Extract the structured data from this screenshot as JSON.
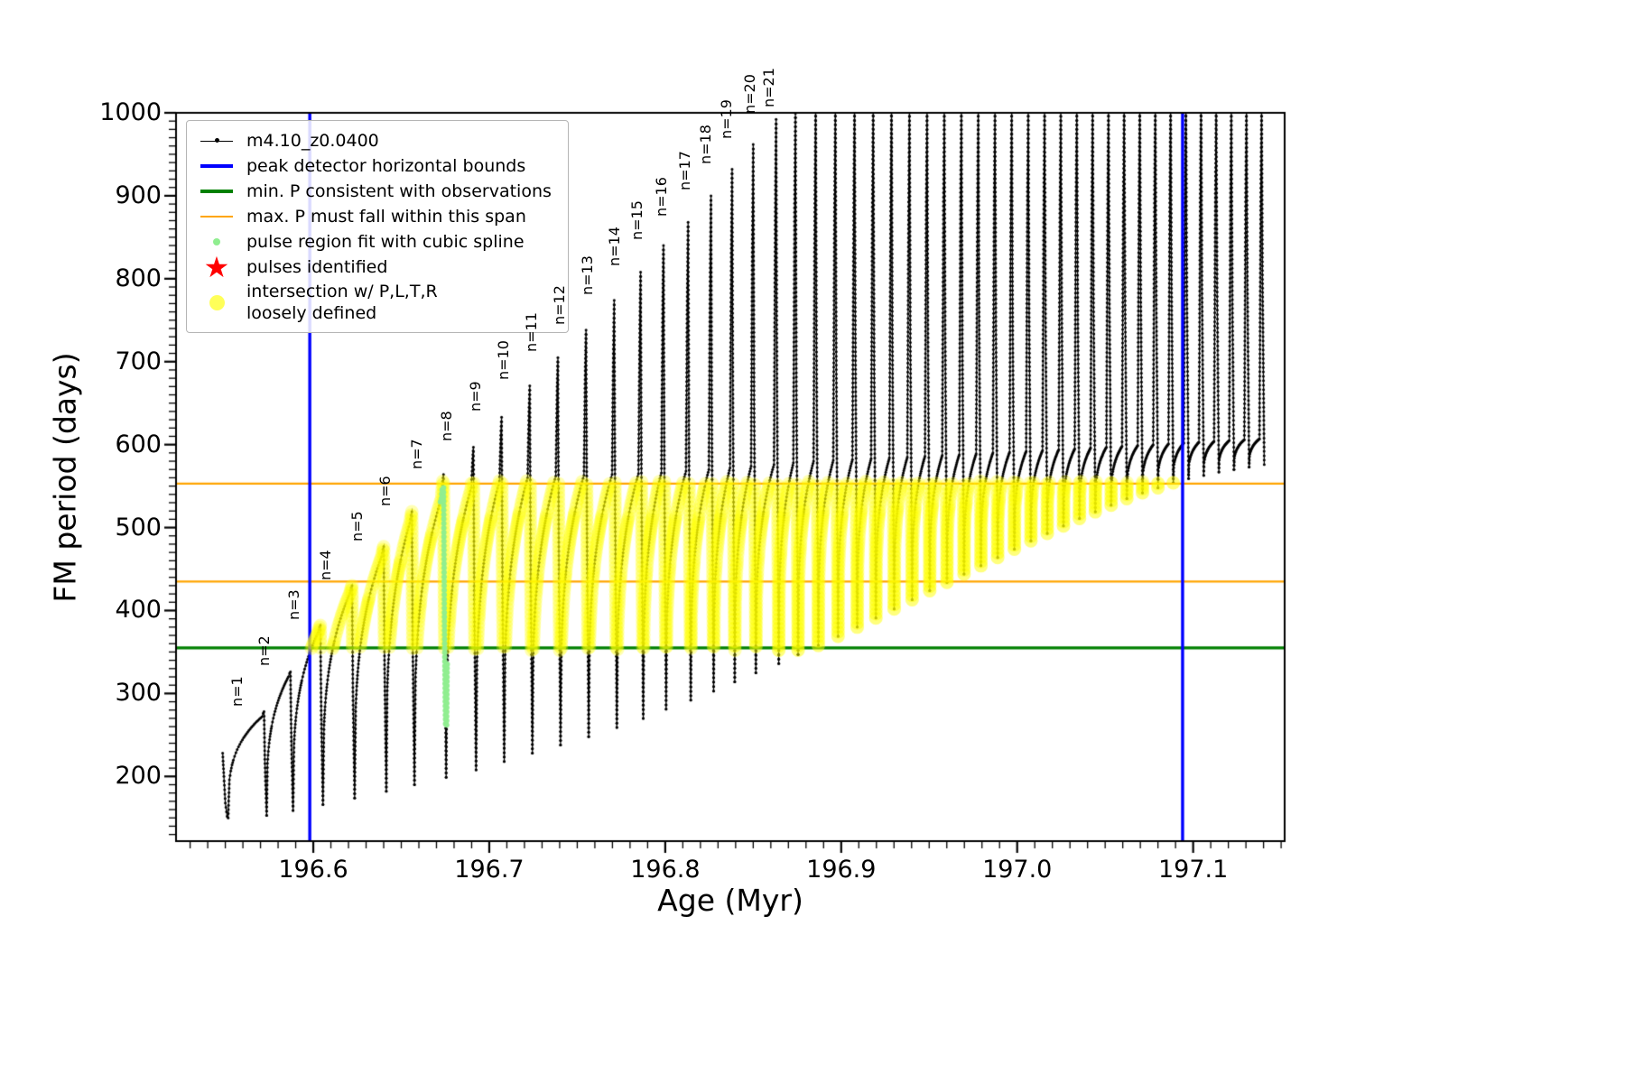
{
  "figure": {
    "background": "#ffffff",
    "xlabel": "Age (Myr)",
    "ylabel": "FM period (days)"
  },
  "legend": {
    "items": [
      {
        "label": "m4.10_z0.0400",
        "type": "line-with-dot-marker",
        "color": "#000000"
      },
      {
        "label": "peak detector horizontal bounds",
        "type": "thick-line",
        "color": "#0000ff"
      },
      {
        "label": "min. P consistent with observations",
        "type": "thick-line",
        "color": "#008000"
      },
      {
        "label": "max. P must fall within this span",
        "type": "line",
        "color": "#ffa500"
      },
      {
        "label": "pulse region fit with cubic spline",
        "type": "small-dot",
        "color": "#90ee90"
      },
      {
        "label": "pulses identified",
        "type": "star",
        "color": "#ff0000"
      },
      {
        "label": "intersection w/ P,L,T,R",
        "label2": "loosely defined",
        "type": "big-dot",
        "color": "#ffff00"
      }
    ]
  },
  "chart_data": {
    "type": "line",
    "title": "",
    "xlabel": "Age (Myr)",
    "ylabel": "FM period (days)",
    "xlim": [
      196.522,
      197.152
    ],
    "ylim": [
      122,
      1000
    ],
    "grid": false,
    "legend_position": "upper-left",
    "series_label": "m4.10_z0.0400",
    "series_color": "#000000",
    "x_major_ticks": {
      "values": [
        196.6,
        196.7,
        196.8,
        196.9,
        197.0,
        197.1
      ],
      "labels": [
        "196.6",
        "196.7",
        "196.8",
        "196.9",
        "197.0",
        "197.1"
      ]
    },
    "y_major_ticks": {
      "values": [
        200,
        300,
        400,
        500,
        600,
        700,
        800,
        900,
        1000
      ],
      "labels": [
        "200",
        "300",
        "400",
        "500",
        "600",
        "700",
        "800",
        "900",
        "1000"
      ]
    },
    "x_minor_step": 0.01,
    "y_minor_step": 10,
    "vlines": {
      "label": "peak detector horizontal bounds",
      "color": "#0000ff",
      "xs": [
        196.598,
        197.094
      ]
    },
    "hline_green": {
      "label": "min. P consistent with observations",
      "color": "#008000",
      "y": 355
    },
    "hlines_orange": {
      "label": "max. P must fall within this span",
      "color": "#ffa500",
      "ys": [
        435,
        553
      ]
    },
    "yellow_band": {
      "label": "intersection w/ P,L,T,R loosely defined",
      "color": "#ffff00",
      "y_min": 352,
      "y_max": 556,
      "x_min": 196.598,
      "x_max": 197.094
    },
    "spline_region": {
      "label": "pulse region fit with cubic spline",
      "color": "#90ee90",
      "x_center": 196.674,
      "half_width": 0.0022,
      "y_min": 262,
      "y_max": 550
    },
    "pulse_labels": [
      "n=1",
      "n=2",
      "n=3",
      "n=4",
      "n=5",
      "n=6",
      "n=7",
      "n=8",
      "n=9",
      "n=10",
      "n=11",
      "n=12",
      "n=13",
      "n=14",
      "n=15",
      "n=16",
      "n=17",
      "n=18",
      "n=19",
      "n=20",
      "n=21"
    ],
    "pulse_fields": [
      "n",
      "age_at_peak_Myr",
      "peak_period_days",
      "cycle_min_period_days",
      "pre_spike_shoulder_days"
    ],
    "lead_in": [
      [
        196.5485,
        228
      ],
      [
        196.5492,
        200
      ],
      [
        196.55,
        168
      ],
      [
        196.551,
        152
      ]
    ],
    "final_min": 576,
    "spike_rise_dx": 0.0012,
    "spike_fall_dx": 0.0015,
    "hump_exponent": 0.3,
    "pulses": [
      [
        1,
        196.572,
        278,
        150,
        272
      ],
      [
        2,
        196.587,
        326,
        153,
        320
      ],
      [
        3,
        196.604,
        382,
        159,
        374
      ],
      [
        4,
        196.622,
        430,
        166,
        421
      ],
      [
        5,
        196.64,
        477,
        174,
        465
      ],
      [
        6,
        196.656,
        519,
        182,
        505
      ],
      [
        7,
        196.674,
        564,
        190,
        535
      ],
      [
        8,
        196.691,
        597,
        199,
        548
      ],
      [
        9,
        196.707,
        633,
        208,
        556
      ],
      [
        10,
        196.723,
        671,
        218,
        560
      ],
      [
        11,
        196.739,
        705,
        228,
        562
      ],
      [
        12,
        196.755,
        738,
        238,
        563
      ],
      [
        13,
        196.771,
        774,
        248,
        564
      ],
      [
        14,
        196.786,
        808,
        259,
        565
      ],
      [
        15,
        196.799,
        840,
        270,
        566
      ],
      [
        16,
        196.813,
        868,
        281,
        568
      ],
      [
        17,
        196.826,
        900,
        292,
        570
      ],
      [
        18,
        196.838,
        932,
        303,
        572
      ],
      [
        19,
        196.85,
        962,
        314,
        574
      ],
      [
        20,
        196.863,
        992,
        325,
        576
      ],
      [
        21,
        196.874,
        1005,
        336,
        578
      ],
      [
        22,
        196.8855,
        1012,
        347,
        580
      ],
      [
        23,
        196.8967,
        1012,
        358,
        581
      ],
      [
        24,
        196.9076,
        1012,
        369,
        582
      ],
      [
        25,
        196.9182,
        1012,
        380,
        583
      ],
      [
        26,
        196.9286,
        1012,
        391,
        584
      ],
      [
        27,
        196.9388,
        1012,
        402,
        585
      ],
      [
        28,
        196.9488,
        1012,
        413,
        586
      ],
      [
        29,
        196.9586,
        1012,
        424,
        587
      ],
      [
        30,
        196.9683,
        1012,
        434,
        588
      ],
      [
        31,
        196.9779,
        1012,
        444,
        589
      ],
      [
        32,
        196.9874,
        1012,
        454,
        590
      ],
      [
        33,
        196.9969,
        1012,
        464,
        591
      ],
      [
        34,
        197.0063,
        1012,
        474,
        592
      ],
      [
        35,
        197.0156,
        1012,
        484,
        593
      ],
      [
        36,
        197.0248,
        1012,
        493,
        594
      ],
      [
        37,
        197.0339,
        1012,
        502,
        595
      ],
      [
        38,
        197.0429,
        1012,
        511,
        596
      ],
      [
        39,
        197.0519,
        1012,
        519,
        597
      ],
      [
        40,
        197.0608,
        1012,
        527,
        598
      ],
      [
        41,
        197.0697,
        1012,
        535,
        599
      ],
      [
        42,
        197.0785,
        1012,
        542,
        600
      ],
      [
        43,
        197.0872,
        1012,
        548,
        601
      ],
      [
        44,
        197.0959,
        1012,
        554,
        602
      ],
      [
        45,
        197.1045,
        1012,
        559,
        603
      ],
      [
        46,
        197.1131,
        1012,
        563,
        604
      ],
      [
        47,
        197.1217,
        1012,
        567,
        605
      ],
      [
        48,
        197.1303,
        1012,
        570,
        606
      ],
      [
        49,
        197.1389,
        1012,
        573,
        607
      ]
    ]
  }
}
